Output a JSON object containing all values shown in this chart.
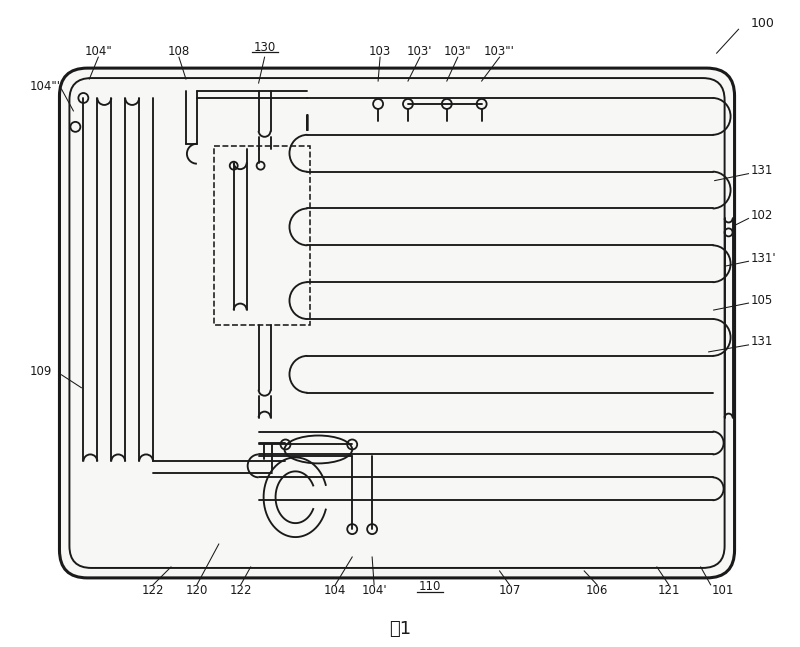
{
  "fig_width": 8.0,
  "fig_height": 6.47,
  "dpi": 100,
  "bg_color": "#f7f7f5",
  "lc": "#1a1a1a",
  "lw_outer": 2.2,
  "lw_inner": 1.4,
  "lw_ch": 1.35,
  "lw_ann": 0.7,
  "fs_label": 8.5,
  "caption": "图1",
  "caption_fontsize": 13
}
